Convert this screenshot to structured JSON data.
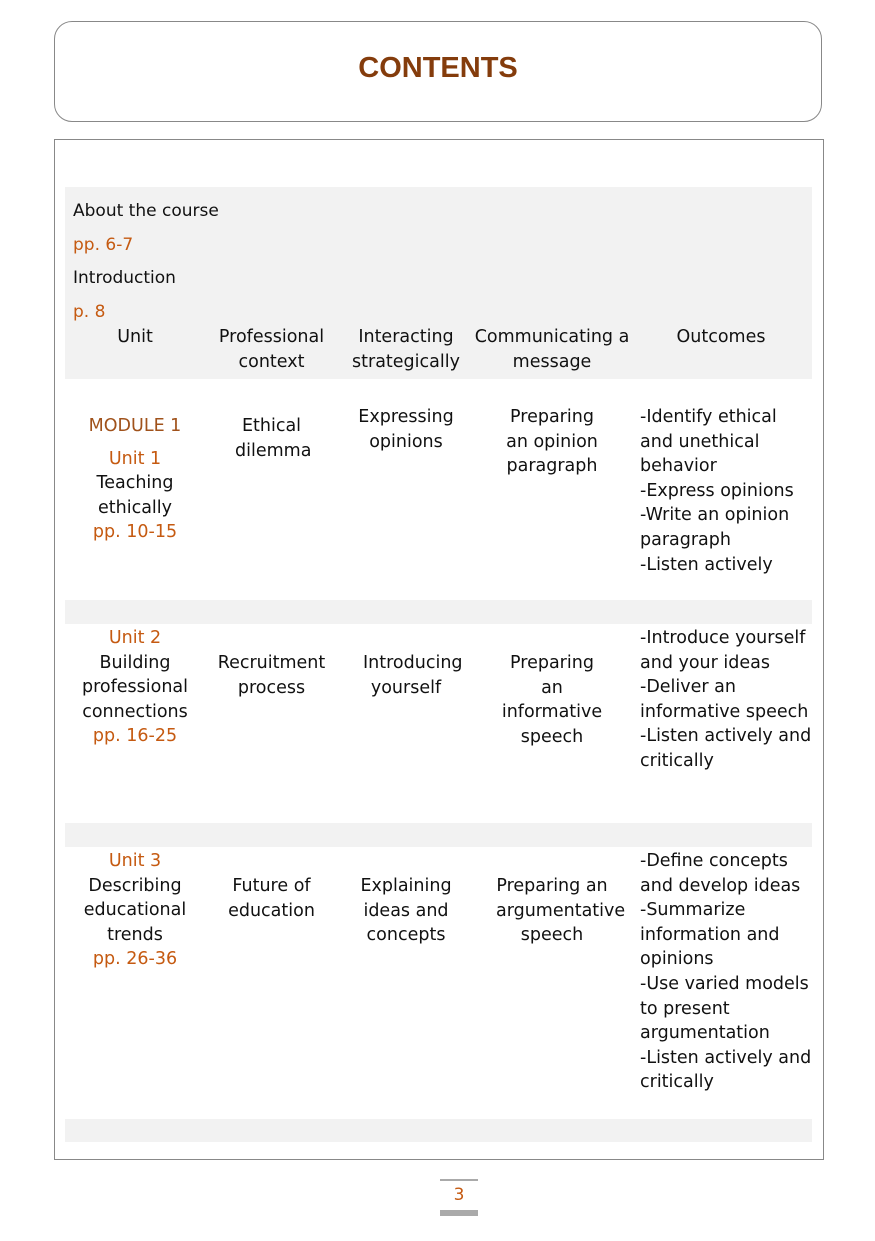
{
  "title": "CONTENTS",
  "intro": [
    {
      "label": "About the course",
      "pages": "pp. 6-7"
    },
    {
      "label": "Introduction",
      "pages": "p. 8"
    }
  ],
  "headers": [
    "Unit",
    "Professional context",
    "Interacting strategically",
    "Communicating a message",
    "Outcomes"
  ],
  "rows": [
    {
      "module": "MODULE 1",
      "unit": "Unit 1",
      "name": "Teaching ethically",
      "pages": "pp. 10-15",
      "context": "Ethical dilemma",
      "interacting": "Expressing opinions",
      "communicating": "Preparing an opinion paragraph",
      "outcomes": [
        "-Identify ethical and unethical behavior",
        "-Express opinions",
        "-Write an opinion paragraph",
        "-Listen actively"
      ]
    },
    {
      "unit": "Unit 2",
      "name": "Building professional connections",
      "pages": "pp. 16-25",
      "context": "Recruitment process",
      "interacting": "Introducing yourself",
      "communicating": "Preparing an informative speech",
      "outcomes": [
        "-Introduce yourself and your ideas",
        "-Deliver an informative speech",
        "-Listen actively and critically"
      ]
    },
    {
      "unit": "Unit 3",
      "name": "Describing educational trends",
      "pages": "pp. 26-36",
      "context": "Future of education",
      "interacting": "Explaining ideas and concepts",
      "communicating": "Preparing an argumentative speech",
      "outcomes": [
        "-Define concepts and develop ideas",
        "-Summarize information and opinions",
        "-Use varied models to present argumentation",
        "-Listen actively and critically"
      ]
    }
  ],
  "page_number": "3",
  "colors": {
    "title": "#843c0c",
    "accent": "#c55a11",
    "band": "#f2f2f2"
  }
}
